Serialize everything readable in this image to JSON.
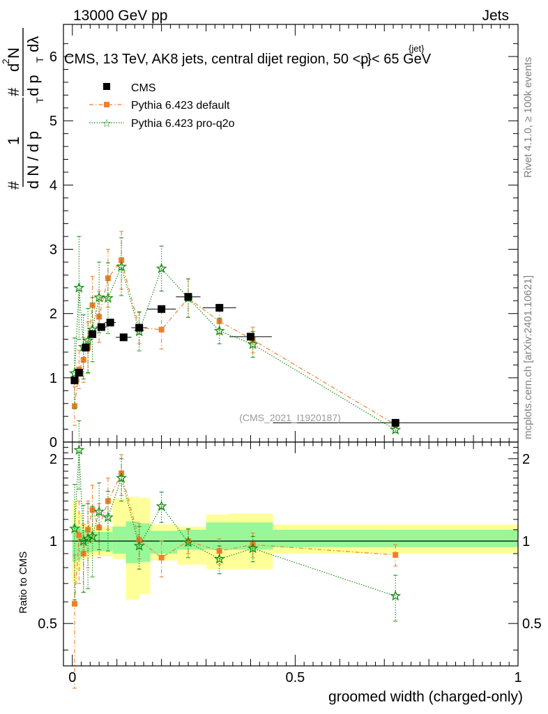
{
  "header": {
    "left": "13000 GeV pp",
    "right": "Jets",
    "caption": "CMS, 13 TeV, AK8 jets, central dijet region, 50 <p",
    "caption_sub": "T",
    "caption_sup": "{jet}",
    "caption_tail": "}< 65 GeV",
    "side_top": "Rivet 4.1.0, ≥ 100k events",
    "side_bottom": "mcplots.cern.ch [arXiv:2401.10621]",
    "watermark": "(CMS_2021_I1920187)"
  },
  "ylabel_parts": [
    "#",
    "1",
    "d N / d p",
    "T",
    "#",
    "d p",
    "T",
    "dλ",
    "d",
    "2",
    "N"
  ],
  "colors": {
    "cms": "#000000",
    "default": "#f07f2b",
    "proq2o": "#138c13",
    "band_inner": "#98f798",
    "band_outer": "#ffff99"
  },
  "chart_data": [
    {
      "type": "scatter",
      "title": "CMS, 13 TeV, AK8 jets, central dijet region, 50 < pT jet < 65 GeV",
      "xlabel": "groomed width (charged-only)",
      "ylabel": "1/(dN/dpT) d2N/dpT dlambda",
      "xlim": [
        -0.02,
        1.0
      ],
      "ylim": [
        0,
        6.5
      ],
      "yticks": [
        0,
        1,
        2,
        3,
        4,
        5,
        6
      ],
      "legend": {
        "position": "top-left",
        "entries": [
          "CMS",
          "Pythia 6.423 default",
          "Pythia 6.423 pro-q2o"
        ]
      },
      "series": [
        {
          "name": "CMS",
          "x": [
            0.005,
            0.015,
            0.03,
            0.045,
            0.065,
            0.085,
            0.115,
            0.15,
            0.2,
            0.26,
            0.33,
            0.4,
            0.725
          ],
          "y": [
            0.96,
            1.08,
            1.47,
            1.68,
            1.79,
            1.86,
            1.63,
            1.78,
            2.07,
            2.26,
            2.09,
            1.64,
            0.3
          ],
          "xerr": [
            0.005,
            0.005,
            0.0075,
            0.0075,
            0.0125,
            0.0125,
            0.0175,
            0.0175,
            0.0325,
            0.0275,
            0.0375,
            0.0475,
            0.275
          ]
        },
        {
          "name": "Pythia 6.423 default",
          "x": [
            0.005,
            0.015,
            0.025,
            0.035,
            0.045,
            0.06,
            0.08,
            0.11,
            0.15,
            0.2,
            0.26,
            0.33,
            0.405,
            0.725
          ],
          "y": [
            0.56,
            1.13,
            1.28,
            1.47,
            2.13,
            1.95,
            2.55,
            2.83,
            1.78,
            1.75,
            2.24,
            1.88,
            1.59,
            0.27
          ],
          "yerr": [
            0.3,
            0.3,
            0.35,
            0.4,
            0.45,
            0.4,
            0.45,
            0.45,
            0.25,
            0.3,
            0.3,
            0.2,
            0.2,
            0.04
          ]
        },
        {
          "name": "Pythia 6.423 pro-q2o",
          "x": [
            0.005,
            0.015,
            0.025,
            0.035,
            0.045,
            0.06,
            0.08,
            0.11,
            0.15,
            0.2,
            0.26,
            0.33,
            0.405,
            0.725
          ],
          "y": [
            1.07,
            2.4,
            1.48,
            1.58,
            1.75,
            2.25,
            2.24,
            2.73,
            1.72,
            2.7,
            2.24,
            1.73,
            1.52,
            0.19
          ],
          "yerr": [
            0.55,
            0.8,
            0.5,
            0.5,
            0.5,
            0.55,
            0.55,
            0.45,
            0.3,
            0.35,
            0.3,
            0.2,
            0.2,
            0.04
          ]
        }
      ]
    },
    {
      "type": "scatter",
      "title": "",
      "xlabel": "groomed width (charged-only)",
      "ylabel": "Ratio to CMS",
      "xlim": [
        -0.02,
        1.0
      ],
      "ylim": [
        0.35,
        2.3
      ],
      "yscale": "log",
      "yticks": [
        0.5,
        1,
        2
      ],
      "xticks": [
        0,
        0.5,
        1
      ],
      "bands": {
        "edges": [
          0.0,
          0.01,
          0.02,
          0.03,
          0.045,
          0.06,
          0.09,
          0.12,
          0.15,
          0.175,
          0.235,
          0.3,
          0.35,
          0.45,
          1.0
        ],
        "inner_low": [
          0.84,
          0.86,
          0.9,
          0.91,
          0.92,
          0.92,
          0.9,
          0.83,
          0.84,
          0.9,
          0.93,
          0.93,
          0.93,
          0.95
        ],
        "inner_high": [
          1.15,
          1.13,
          1.1,
          1.09,
          1.08,
          1.08,
          1.13,
          1.18,
          1.16,
          1.09,
          1.1,
          1.17,
          1.17,
          1.1
        ],
        "outer_low": [
          0.7,
          0.78,
          0.86,
          0.87,
          0.88,
          0.88,
          0.86,
          0.61,
          0.64,
          0.85,
          0.82,
          0.79,
          0.79,
          0.9
        ],
        "outer_high": [
          1.4,
          1.28,
          1.16,
          1.14,
          1.13,
          1.13,
          1.43,
          1.45,
          1.44,
          1.15,
          1.13,
          1.25,
          1.26,
          1.15
        ]
      },
      "series": [
        {
          "name": "Pythia 6.423 default",
          "x": [
            0.005,
            0.015,
            0.025,
            0.035,
            0.045,
            0.06,
            0.08,
            0.11,
            0.15,
            0.2,
            0.26,
            0.33,
            0.405,
            0.725
          ],
          "y": [
            0.59,
            1.05,
            0.9,
            1.1,
            1.3,
            1.12,
            1.4,
            1.77,
            1.01,
            0.87,
            1.0,
            0.92,
            0.97,
            0.89
          ],
          "yerr": [
            0.3,
            0.35,
            0.25,
            0.3,
            0.3,
            0.25,
            0.3,
            0.3,
            0.15,
            0.13,
            0.1,
            0.1,
            0.1,
            0.08
          ]
        },
        {
          "name": "Pythia 6.423 pro-q2o",
          "x": [
            0.005,
            0.015,
            0.025,
            0.035,
            0.045,
            0.06,
            0.08,
            0.11,
            0.15,
            0.2,
            0.26,
            0.33,
            0.405,
            0.725
          ],
          "y": [
            1.11,
            2.15,
            1.0,
            1.02,
            1.04,
            1.28,
            1.22,
            1.7,
            0.96,
            1.34,
            0.99,
            0.86,
            0.94,
            0.63
          ],
          "yerr": [
            0.5,
            0.6,
            0.35,
            0.35,
            0.3,
            0.35,
            0.3,
            0.3,
            0.17,
            0.17,
            0.12,
            0.1,
            0.1,
            0.12
          ]
        }
      ]
    }
  ]
}
